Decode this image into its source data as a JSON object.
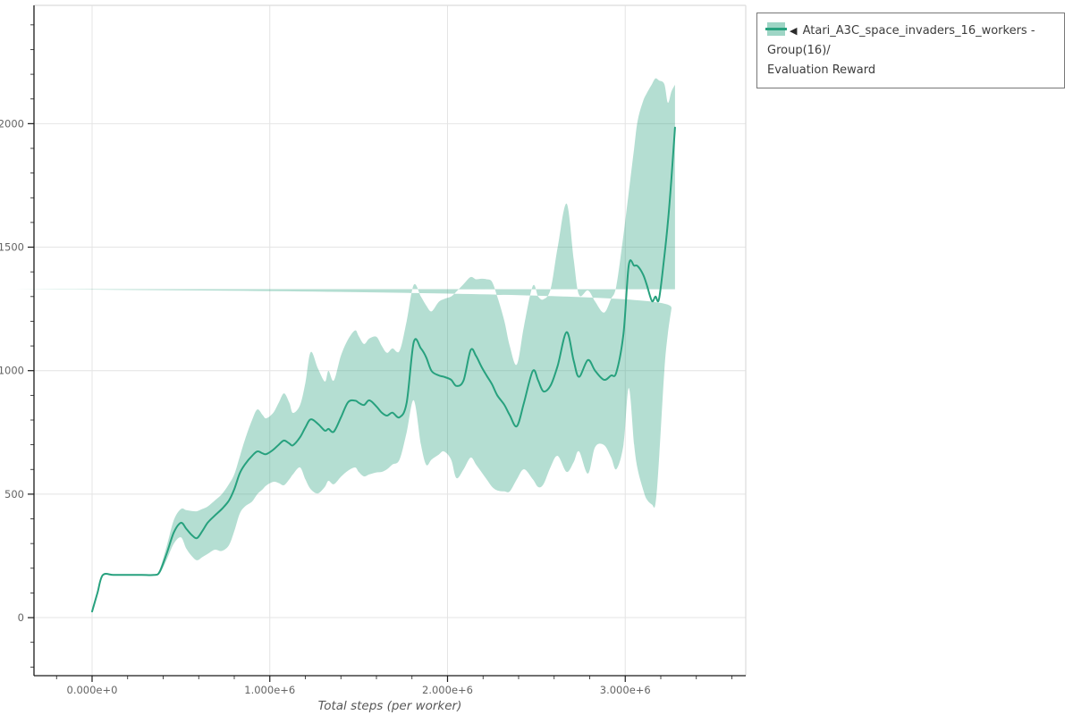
{
  "chart": {
    "legend": {
      "triangle": "◀",
      "label_line1": "Atari_A3C_space_invaders_16_workers - Group(16)/",
      "label_line2": "Evaluation Reward"
    }
  },
  "chart_data": {
    "type": "line",
    "title": "",
    "xlabel": "Total steps (per worker)",
    "ylabel": "",
    "x_unit": "millions of steps",
    "xlim_e6": [
      -0.327,
      3.678
    ],
    "ylim": [
      -235,
      2479
    ],
    "x_major_ticks_e6": [
      0,
      1,
      2,
      3
    ],
    "x_major_tick_labels": [
      "0.000e+0",
      "1.000e+6",
      "2.000e+6",
      "3.000e+6"
    ],
    "x_minor_tick_step_e6": 0.2,
    "y_major_ticks": [
      0,
      500,
      1000,
      1500,
      2000
    ],
    "y_major_tick_labels": [
      "0",
      "500",
      "1000",
      "1500",
      "2000"
    ],
    "y_minor_tick_step": 100,
    "grid": "major-only",
    "legend_position": "outside-top-right",
    "colors": {
      "background": "#ffffff",
      "grid": "#e4e4e4",
      "plot_border": "#dcdcdc",
      "axis": "#1a1a1a",
      "tick_label": "#646464",
      "axis_title": "#575757",
      "legend_border": "#777777",
      "legend_text": "#3c3c3c"
    },
    "series": [
      {
        "name": "Atari_A3C_space_invaders_16_workers - Group(16)/Evaluation Reward",
        "line_color": "#27a17e",
        "band_color": "rgba(39,161,126,0.35)",
        "legend_patch_color": "rgba(39,161,126,0.45)",
        "x_e6": [
          0.0,
          0.03,
          0.06,
          0.12,
          0.2,
          0.28,
          0.35,
          0.38,
          0.42,
          0.46,
          0.5,
          0.53,
          0.56,
          0.59,
          0.62,
          0.65,
          0.69,
          0.73,
          0.77,
          0.8,
          0.83,
          0.86,
          0.9,
          0.93,
          0.96,
          0.98,
          1.02,
          1.05,
          1.08,
          1.11,
          1.13,
          1.17,
          1.2,
          1.23,
          1.27,
          1.31,
          1.33,
          1.36,
          1.4,
          1.44,
          1.48,
          1.5,
          1.53,
          1.56,
          1.6,
          1.63,
          1.66,
          1.69,
          1.73,
          1.77,
          1.81,
          1.85,
          1.88,
          1.91,
          1.95,
          1.98,
          2.02,
          2.05,
          2.09,
          2.13,
          2.16,
          2.19,
          2.22,
          2.25,
          2.28,
          2.32,
          2.35,
          2.39,
          2.43,
          2.48,
          2.51,
          2.54,
          2.58,
          2.62,
          2.67,
          2.71,
          2.74,
          2.79,
          2.83,
          2.88,
          2.92,
          2.95,
          2.99,
          3.02,
          3.05,
          3.07,
          3.1,
          3.12,
          3.15,
          3.17,
          3.19,
          3.22,
          3.24,
          3.26,
          3.28
        ],
        "mean": [
          25,
          100,
          172,
          173,
          173,
          173,
          173,
          185,
          260,
          345,
          384,
          360,
          335,
          322,
          350,
          384,
          413,
          440,
          474,
          520,
          583,
          620,
          655,
          673,
          665,
          662,
          680,
          700,
          717,
          705,
          698,
          730,
          770,
          803,
          785,
          757,
          764,
          753,
          810,
          872,
          879,
          870,
          861,
          880,
          855,
          830,
          818,
          830,
          811,
          870,
          1115,
          1090,
          1054,
          999,
          981,
          975,
          963,
          938,
          960,
          1083,
          1060,
          1017,
          980,
          945,
          900,
          861,
          820,
          775,
          870,
          999,
          960,
          916,
          940,
          1020,
          1156,
          1040,
          975,
          1043,
          1000,
          963,
          980,
          993,
          1150,
          1427,
          1425,
          1423,
          1390,
          1350,
          1282,
          1300,
          1290,
          1463,
          1600,
          1778,
          1984
        ],
        "band_lower": [
          25,
          100,
          172,
          173,
          173,
          173,
          173,
          178,
          235,
          300,
          325,
          280,
          250,
          232,
          245,
          258,
          275,
          270,
          293,
          350,
          420,
          450,
          470,
          500,
          520,
          535,
          550,
          545,
          536,
          560,
          580,
          608,
          560,
          520,
          503,
          530,
          554,
          540,
          570,
          595,
          608,
          590,
          572,
          580,
          588,
          590,
          601,
          620,
          640,
          750,
          880,
          702,
          619,
          640,
          660,
          673,
          640,
          565,
          600,
          648,
          620,
          590,
          560,
          530,
          515,
          511,
          511,
          560,
          601,
          560,
          529,
          540,
          610,
          655,
          590,
          630,
          673,
          583,
          690,
          699,
          650,
          601,
          700,
          930,
          700,
          600,
          520,
          480,
          458,
          460,
          640,
          1000,
          1150,
          1250,
          1330
        ],
        "band_upper": [
          25,
          100,
          172,
          173,
          173,
          173,
          173,
          195,
          290,
          395,
          440,
          435,
          432,
          431,
          440,
          450,
          474,
          500,
          540,
          580,
          650,
          720,
          800,
          843,
          820,
          807,
          830,
          870,
          908,
          870,
          829,
          860,
          950,
          1075,
          1010,
          956,
          999,
          960,
          1060,
          1126,
          1163,
          1140,
          1108,
          1130,
          1137,
          1100,
          1072,
          1090,
          1080,
          1200,
          1347,
          1300,
          1264,
          1240,
          1278,
          1290,
          1300,
          1320,
          1350,
          1379,
          1370,
          1372,
          1370,
          1360,
          1300,
          1200,
          1100,
          1025,
          1180,
          1343,
          1300,
          1289,
          1330,
          1500,
          1676,
          1450,
          1307,
          1325,
          1280,
          1235,
          1290,
          1343,
          1550,
          1723,
          1900,
          2013,
          2090,
          2122,
          2160,
          2183,
          2175,
          2160,
          2085,
          2130,
          2158
        ]
      }
    ]
  }
}
